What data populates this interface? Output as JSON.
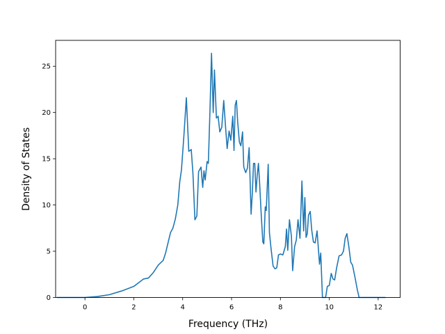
{
  "chart_data": {
    "type": "line",
    "title": "",
    "xlabel": "Frequency (THz)",
    "ylabel": "Density of States",
    "xlim": [
      -1.2,
      12.9
    ],
    "ylim": [
      0,
      27.8
    ],
    "xticks": [
      0,
      2,
      4,
      6,
      8,
      10,
      12
    ],
    "xtick_labels": [
      "0",
      "2",
      "4",
      "6",
      "8",
      "10",
      "12"
    ],
    "yticks": [
      0,
      5,
      10,
      15,
      20,
      25
    ],
    "ytick_labels": [
      "0",
      "5",
      "10",
      "15",
      "20",
      "25"
    ],
    "grid": false,
    "legend": "none",
    "series": [
      {
        "color": "#1f77b4",
        "x": [
          -1.15,
          0.0,
          0.5,
          1.0,
          1.5,
          1.8,
          2.0,
          2.2,
          2.4,
          2.6,
          2.8,
          3.0,
          3.2,
          3.3,
          3.5,
          3.6,
          3.7,
          3.8,
          3.88,
          3.95,
          4.05,
          4.15,
          4.25,
          4.35,
          4.42,
          4.5,
          4.58,
          4.65,
          4.75,
          4.82,
          4.87,
          4.92,
          5.0,
          5.05,
          5.12,
          5.18,
          5.25,
          5.3,
          5.38,
          5.45,
          5.52,
          5.6,
          5.68,
          5.75,
          5.82,
          5.9,
          5.97,
          6.05,
          6.1,
          6.15,
          6.2,
          6.25,
          6.32,
          6.38,
          6.45,
          6.5,
          6.58,
          6.65,
          6.72,
          6.8,
          6.85,
          6.9,
          6.95,
          7.0,
          7.05,
          7.1,
          7.15,
          7.22,
          7.28,
          7.32,
          7.38,
          7.42,
          7.5,
          7.55,
          7.62,
          7.7,
          7.78,
          7.85,
          7.92,
          8.0,
          8.1,
          8.2,
          8.25,
          8.3,
          8.37,
          8.45,
          8.5,
          8.58,
          8.65,
          8.72,
          8.8,
          8.88,
          8.95,
          9.0,
          9.05,
          9.1,
          9.15,
          9.22,
          9.28,
          9.35,
          9.42,
          9.5,
          9.55,
          9.6,
          9.65,
          9.72,
          9.78,
          9.85,
          9.92,
          10.0,
          10.08,
          10.15,
          10.22,
          10.3,
          10.4,
          10.5,
          10.58,
          10.65,
          10.72,
          10.8,
          10.88,
          10.95,
          11.05,
          11.15,
          11.22,
          11.3,
          11.5,
          12.0,
          12.3
        ],
        "y": [
          0,
          0,
          0.1,
          0.3,
          0.7,
          1.0,
          1.2,
          1.6,
          2.0,
          2.1,
          2.7,
          3.5,
          4.0,
          4.8,
          7.0,
          7.5,
          8.5,
          10.0,
          12.5,
          13.8,
          17.5,
          21.6,
          15.8,
          16.0,
          13.4,
          8.4,
          8.8,
          13.6,
          14.1,
          11.9,
          13.7,
          12.7,
          14.7,
          14.5,
          20.5,
          26.4,
          20.0,
          24.6,
          19.4,
          19.6,
          17.9,
          18.4,
          21.3,
          18.6,
          16.1,
          18.0,
          17.0,
          19.6,
          15.9,
          20.8,
          21.3,
          19.0,
          16.8,
          16.4,
          17.9,
          14.1,
          13.5,
          14.0,
          16.2,
          9.0,
          11.3,
          14.5,
          14.5,
          11.4,
          13.2,
          14.5,
          12.3,
          8.7,
          6.0,
          5.8,
          9.8,
          9.4,
          14.4,
          7.0,
          5.2,
          3.4,
          3.1,
          3.2,
          4.6,
          4.7,
          4.6,
          5.5,
          7.4,
          5.1,
          8.4,
          6.6,
          2.9,
          5.5,
          6.2,
          8.4,
          6.4,
          12.6,
          7.2,
          10.8,
          6.5,
          6.9,
          8.9,
          9.3,
          7.3,
          6.0,
          5.9,
          7.2,
          5.4,
          3.6,
          4.8,
          0,
          0,
          0,
          1.2,
          1.3,
          2.6,
          2.0,
          1.9,
          3.2,
          4.5,
          4.6,
          5.0,
          6.4,
          6.9,
          5.5,
          3.8,
          3.5,
          2.2,
          0.8,
          0,
          0,
          0,
          0,
          0
        ]
      }
    ]
  }
}
